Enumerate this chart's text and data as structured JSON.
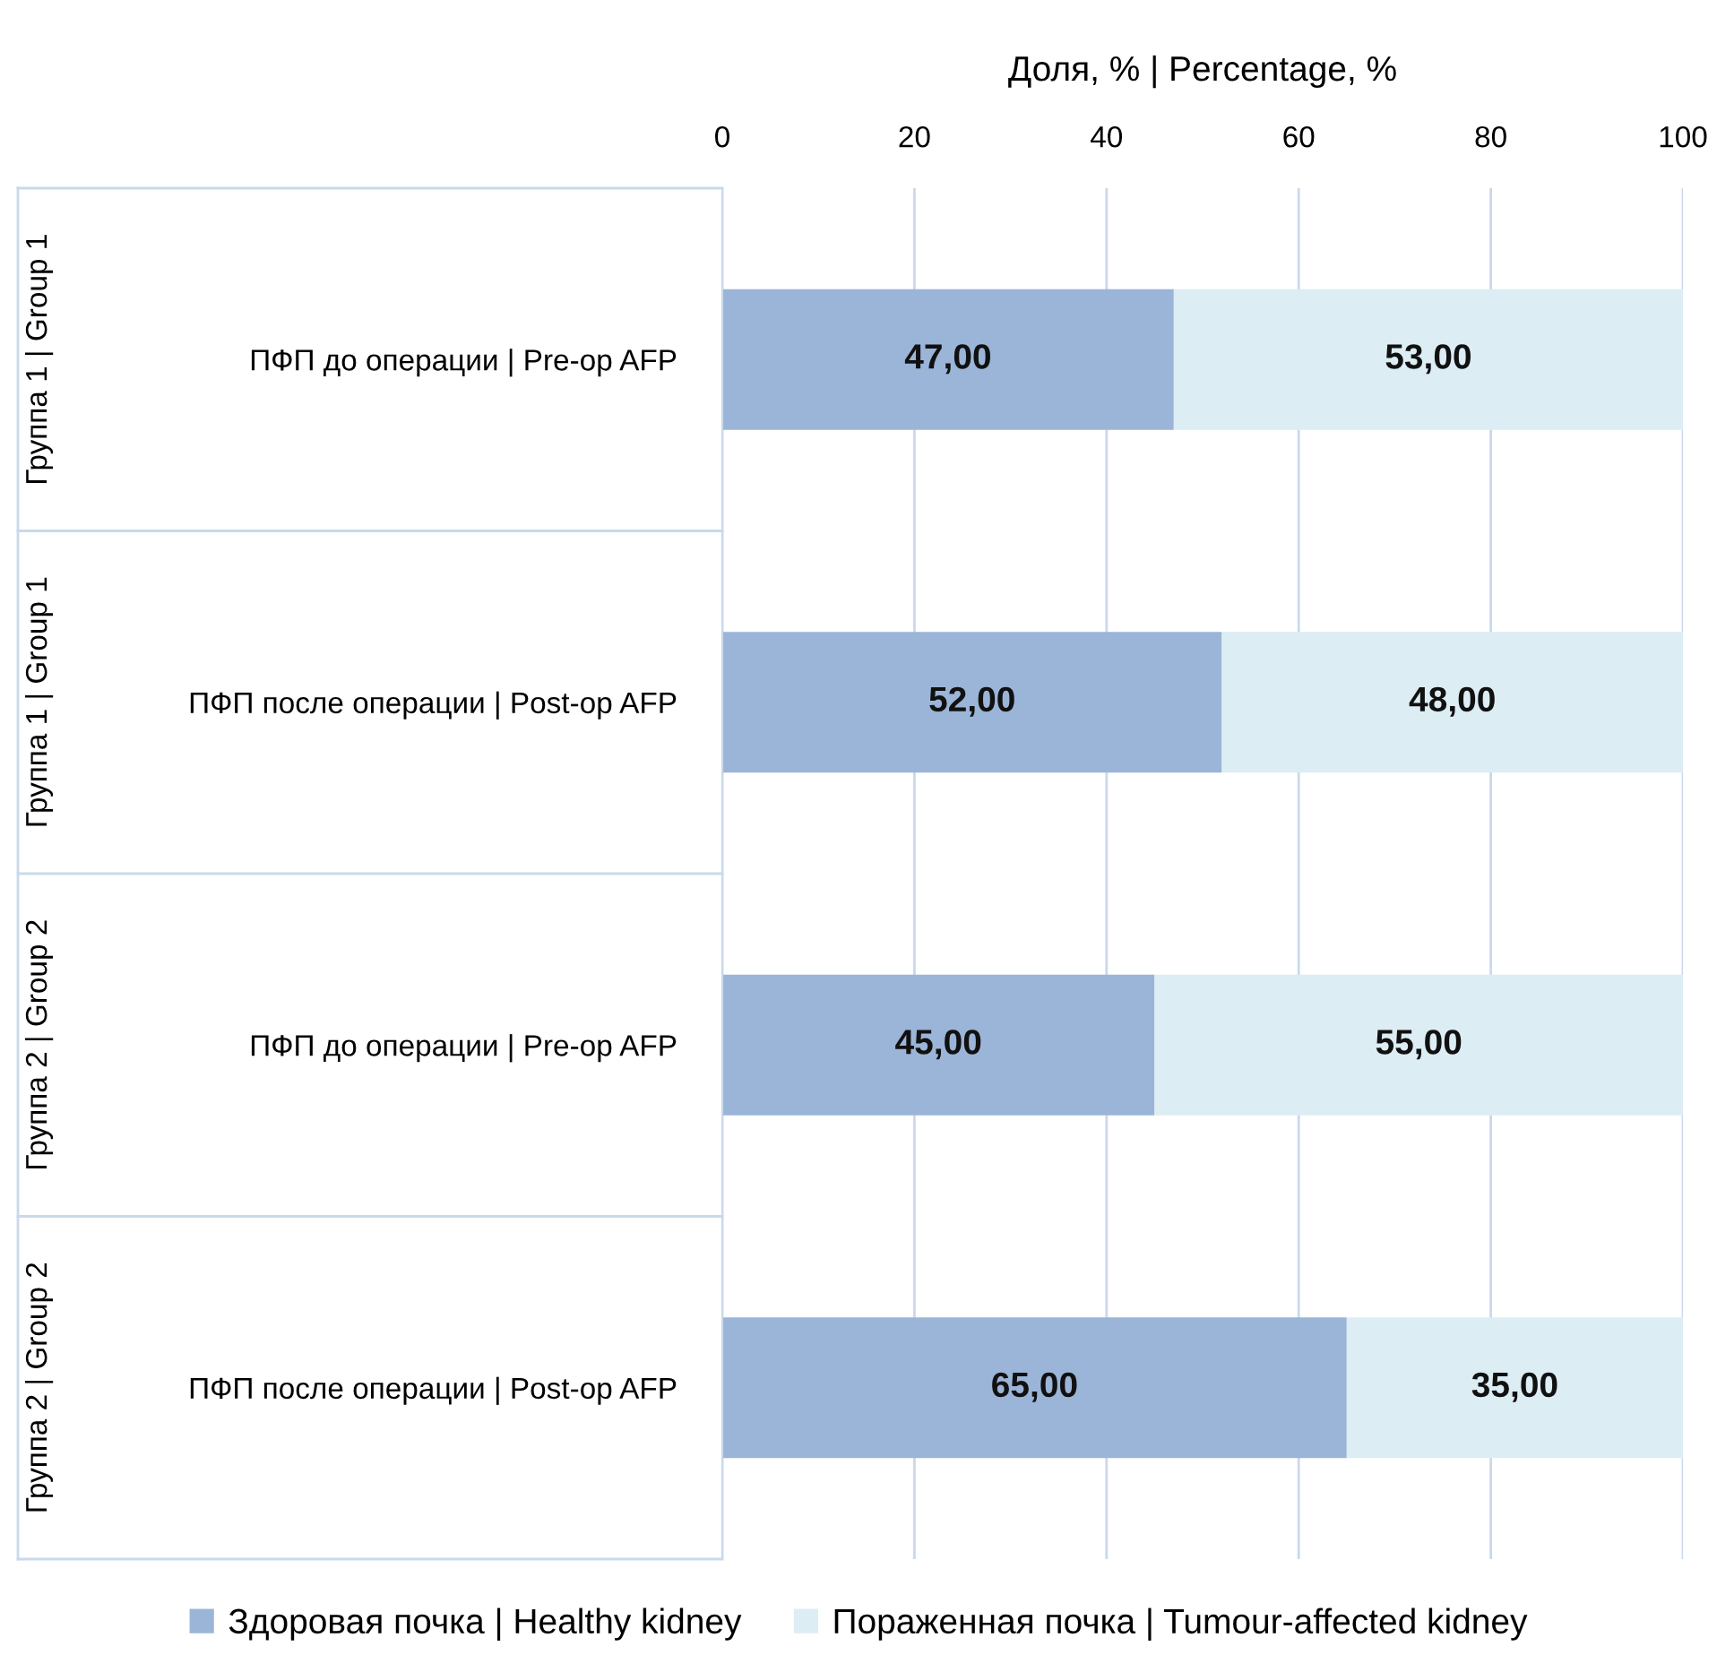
{
  "chart_data": {
    "type": "bar",
    "orientation": "horizontal",
    "stacked": true,
    "xlabel": "Доля, % | Percentage, %",
    "categories": [
      "ПФП до операции | Pre-op AFP",
      "ПФП после операции | Post-op AFP",
      "ПФП до операции | Pre-op AFP",
      "ПФП после операции | Post-op AFP"
    ],
    "annotations": [
      "Группа 1 | Group 1",
      "Группа 1 | Group 1",
      "Группа 2 | Group 2",
      "Группа 2 | Group 2"
    ],
    "series": [
      {
        "name": "Здоровая почка | Healthy kidney",
        "color": "#9bb5d8",
        "values": [
          47,
          52,
          45,
          65
        ],
        "value_labels": [
          "47,00",
          "52,00",
          "45,00",
          "65,00"
        ]
      },
      {
        "name": "Пораженная почка | Tumour-affected kidney",
        "color": "#dcedf4",
        "values": [
          53,
          48,
          55,
          35
        ],
        "value_labels": [
          "53,00",
          "48,00",
          "55,00",
          "35,00"
        ]
      }
    ],
    "xlim": [
      0,
      100
    ],
    "xticks": [
      0,
      20,
      40,
      60,
      80,
      100
    ],
    "grid": "x",
    "legend": "bottom"
  }
}
